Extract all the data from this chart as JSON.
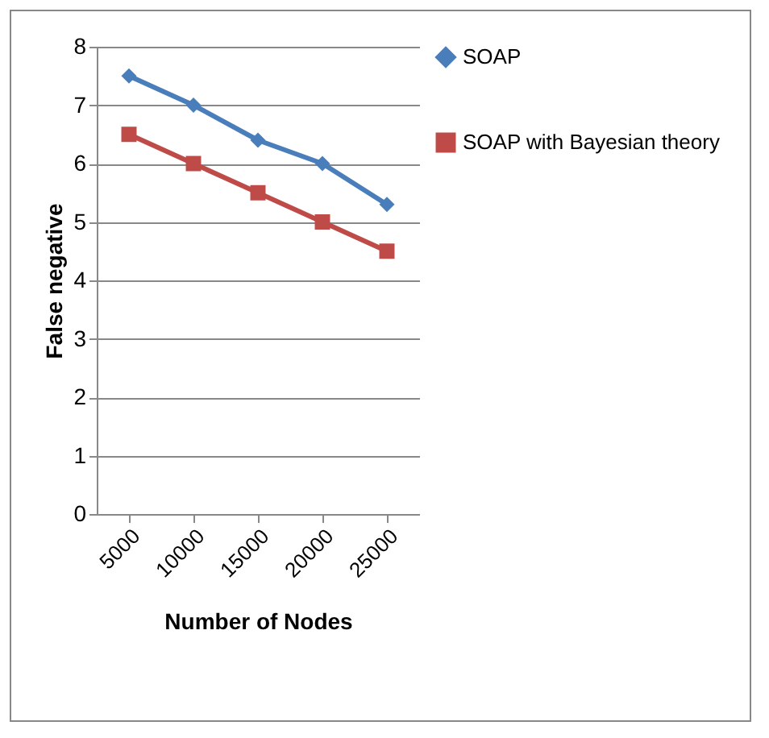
{
  "chart_data": {
    "type": "line",
    "xlabel": "Number of Nodes",
    "ylabel": "False negative",
    "categories": [
      "5000",
      "10000",
      "15000",
      "20000",
      "25000"
    ],
    "series": [
      {
        "name": "SOAP",
        "color": "#4a7ebb",
        "marker": "diamond",
        "values": [
          7.5,
          7,
          6.4,
          6,
          5.3
        ]
      },
      {
        "name": "SOAP with Bayesian theory",
        "color": "#be4b48",
        "marker": "square",
        "values": [
          6.5,
          6,
          5.5,
          5,
          4.5
        ]
      }
    ],
    "ylim": [
      0,
      8
    ],
    "yticks": [
      0,
      1,
      2,
      3,
      4,
      5,
      6,
      7,
      8
    ],
    "grid": "y",
    "legend": "right"
  }
}
